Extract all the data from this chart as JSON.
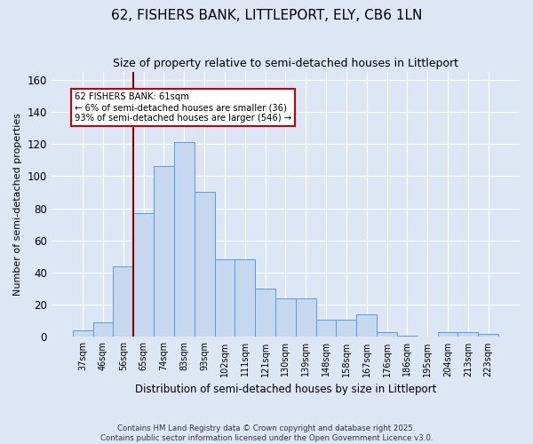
{
  "title": "62, FISHERS BANK, LITTLEPORT, ELY, CB6 1LN",
  "subtitle": "Size of property relative to semi-detached houses in Littleport",
  "xlabel": "Distribution of semi-detached houses by size in Littleport",
  "ylabel": "Number of semi-detached properties",
  "categories": [
    "37sqm",
    "46sqm",
    "56sqm",
    "65sqm",
    "74sqm",
    "83sqm",
    "93sqm",
    "102sqm",
    "111sqm",
    "121sqm",
    "130sqm",
    "139sqm",
    "148sqm",
    "158sqm",
    "167sqm",
    "176sqm",
    "186sqm",
    "195sqm",
    "204sqm",
    "213sqm",
    "223sqm"
  ],
  "values": [
    4,
    9,
    44,
    77,
    106,
    121,
    90,
    48,
    48,
    30,
    24,
    24,
    11,
    11,
    14,
    3,
    1,
    0,
    3,
    3,
    2
  ],
  "bar_color": "#c5d8f0",
  "bar_edge_color": "#5b9bd5",
  "vline_color": "#8b0000",
  "annotation_text": "62 FISHERS BANK: 61sqm\n← 6% of semi-detached houses are smaller (36)\n93% of semi-detached houses are larger (546) →",
  "annotation_box_color": "#ffffff",
  "annotation_box_edge": "#cc0000",
  "footer_line1": "Contains HM Land Registry data © Crown copyright and database right 2025.",
  "footer_line2": "Contains public sector information licensed under the Open Government Licence v3.0.",
  "background_color": "#dde6f5",
  "plot_background": "#dde6f5",
  "ylim": [
    0,
    165
  ],
  "yticks": [
    0,
    20,
    40,
    60,
    80,
    100,
    120,
    140,
    160
  ],
  "title_fontsize": 11,
  "subtitle_fontsize": 9,
  "figsize": [
    6.0,
    5.0
  ],
  "dpi": 100
}
